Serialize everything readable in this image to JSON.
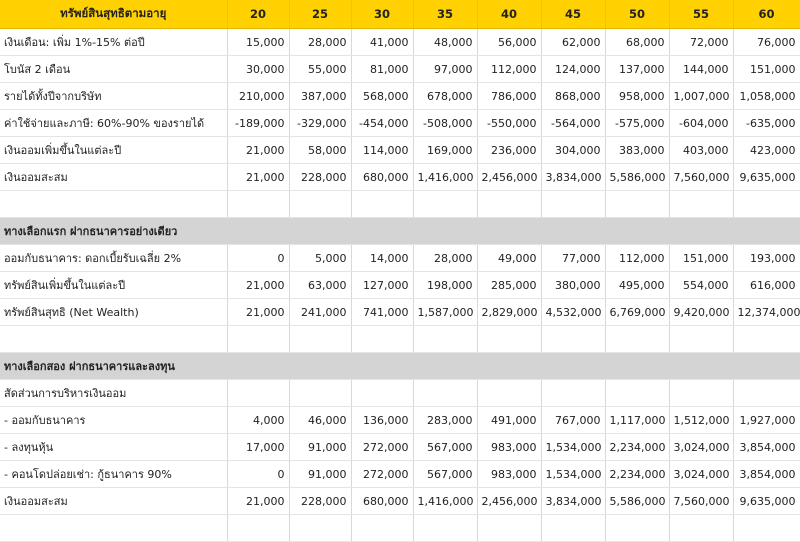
{
  "header": {
    "label": "ทรัพย์สินสุทธิตามอายุ",
    "ages": [
      "20",
      "25",
      "30",
      "35",
      "40",
      "45",
      "50",
      "55",
      "60"
    ]
  },
  "rows": [
    {
      "type": "data",
      "name": "monthly-salary-row",
      "label": "เงินเดือน: เพิ่ม 1%-15% ต่อปี",
      "values": [
        "15,000",
        "28,000",
        "41,000",
        "48,000",
        "56,000",
        "62,000",
        "68,000",
        "72,000",
        "76,000"
      ]
    },
    {
      "type": "data",
      "name": "bonus-row",
      "label": "โบนัส 2 เดือน",
      "values": [
        "30,000",
        "55,000",
        "81,000",
        "97,000",
        "112,000",
        "124,000",
        "137,000",
        "144,000",
        "151,000"
      ]
    },
    {
      "type": "data",
      "name": "annual-income-row",
      "label": "รายได้ทั้งปีจากบริษัท",
      "values": [
        "210,000",
        "387,000",
        "568,000",
        "678,000",
        "786,000",
        "868,000",
        "958,000",
        "1,007,000",
        "1,058,000"
      ]
    },
    {
      "type": "data",
      "name": "expenses-row",
      "label": "ค่าใช้จ่ายและภาษี: 60%-90% ของรายได้",
      "values": [
        "-189,000",
        "-329,000",
        "-454,000",
        "-508,000",
        "-550,000",
        "-564,000",
        "-575,000",
        "-604,000",
        "-635,000"
      ]
    },
    {
      "type": "data",
      "name": "annual-savings-row",
      "label": "เงินออมเพิ่มขึ้นในแต่ละปี",
      "values": [
        "21,000",
        "58,000",
        "114,000",
        "169,000",
        "236,000",
        "304,000",
        "383,000",
        "403,000",
        "423,000"
      ]
    },
    {
      "type": "data",
      "name": "accumulated-savings-row",
      "label": "เงินออมสะสม",
      "values": [
        "21,000",
        "228,000",
        "680,000",
        "1,416,000",
        "2,456,000",
        "3,834,000",
        "5,586,000",
        "7,560,000",
        "9,635,000"
      ]
    },
    {
      "type": "blank"
    },
    {
      "type": "section",
      "name": "option-one-section",
      "label": "ทางเลือกแรก ฝากธนาคารอย่างเดียว"
    },
    {
      "type": "data",
      "name": "bank-deposit-row",
      "label": "ออมกับธนาคาร: ดอกเบี้ยรับเฉลี่ย 2%",
      "values": [
        "0",
        "5,000",
        "14,000",
        "28,000",
        "49,000",
        "77,000",
        "112,000",
        "151,000",
        "193,000"
      ]
    },
    {
      "type": "data",
      "name": "annual-asset-growth-row",
      "label": "ทรัพย์สินเพิ่มขึ้นในแต่ละปี",
      "values": [
        "21,000",
        "63,000",
        "127,000",
        "198,000",
        "285,000",
        "380,000",
        "495,000",
        "554,000",
        "616,000"
      ]
    },
    {
      "type": "data",
      "name": "net-wealth-row",
      "label": "ทรัพย์สินสุทธิ (Net Wealth)",
      "values": [
        "21,000",
        "241,000",
        "741,000",
        "1,587,000",
        "2,829,000",
        "4,532,000",
        "6,769,000",
        "9,420,000",
        "12,374,000"
      ]
    },
    {
      "type": "blank"
    },
    {
      "type": "section",
      "name": "option-two-section",
      "label": "ทางเลือกสอง ฝากธนาคารและลงทุน"
    },
    {
      "type": "label",
      "name": "allocation-label-row",
      "label": "สัดส่วนการบริหารเงินออม"
    },
    {
      "type": "data",
      "name": "bank-savings-row",
      "label": "- ออมกับธนาคาร",
      "values": [
        "4,000",
        "46,000",
        "136,000",
        "283,000",
        "491,000",
        "767,000",
        "1,117,000",
        "1,512,000",
        "1,927,000"
      ]
    },
    {
      "type": "data",
      "name": "stock-investment-row",
      "label": "- ลงทุนหุ้น",
      "values": [
        "17,000",
        "91,000",
        "272,000",
        "567,000",
        "983,000",
        "1,534,000",
        "2,234,000",
        "3,024,000",
        "3,854,000"
      ]
    },
    {
      "type": "data",
      "name": "condo-rental-row",
      "label": "- คอนโดปล่อยเช่า: กู้ธนาคาร 90%",
      "values": [
        "0",
        "91,000",
        "272,000",
        "567,000",
        "983,000",
        "1,534,000",
        "2,234,000",
        "3,024,000",
        "3,854,000"
      ]
    },
    {
      "type": "data",
      "name": "accumulated-savings-row-2",
      "label": "เงินออมสะสม",
      "values": [
        "21,000",
        "228,000",
        "680,000",
        "1,416,000",
        "2,456,000",
        "3,834,000",
        "5,586,000",
        "7,560,000",
        "9,635,000"
      ]
    },
    {
      "type": "blank"
    }
  ],
  "colors": {
    "header_bg": "#ffd100",
    "section_bg": "#d4d4d4",
    "grid_line": "#d9d9d9"
  }
}
